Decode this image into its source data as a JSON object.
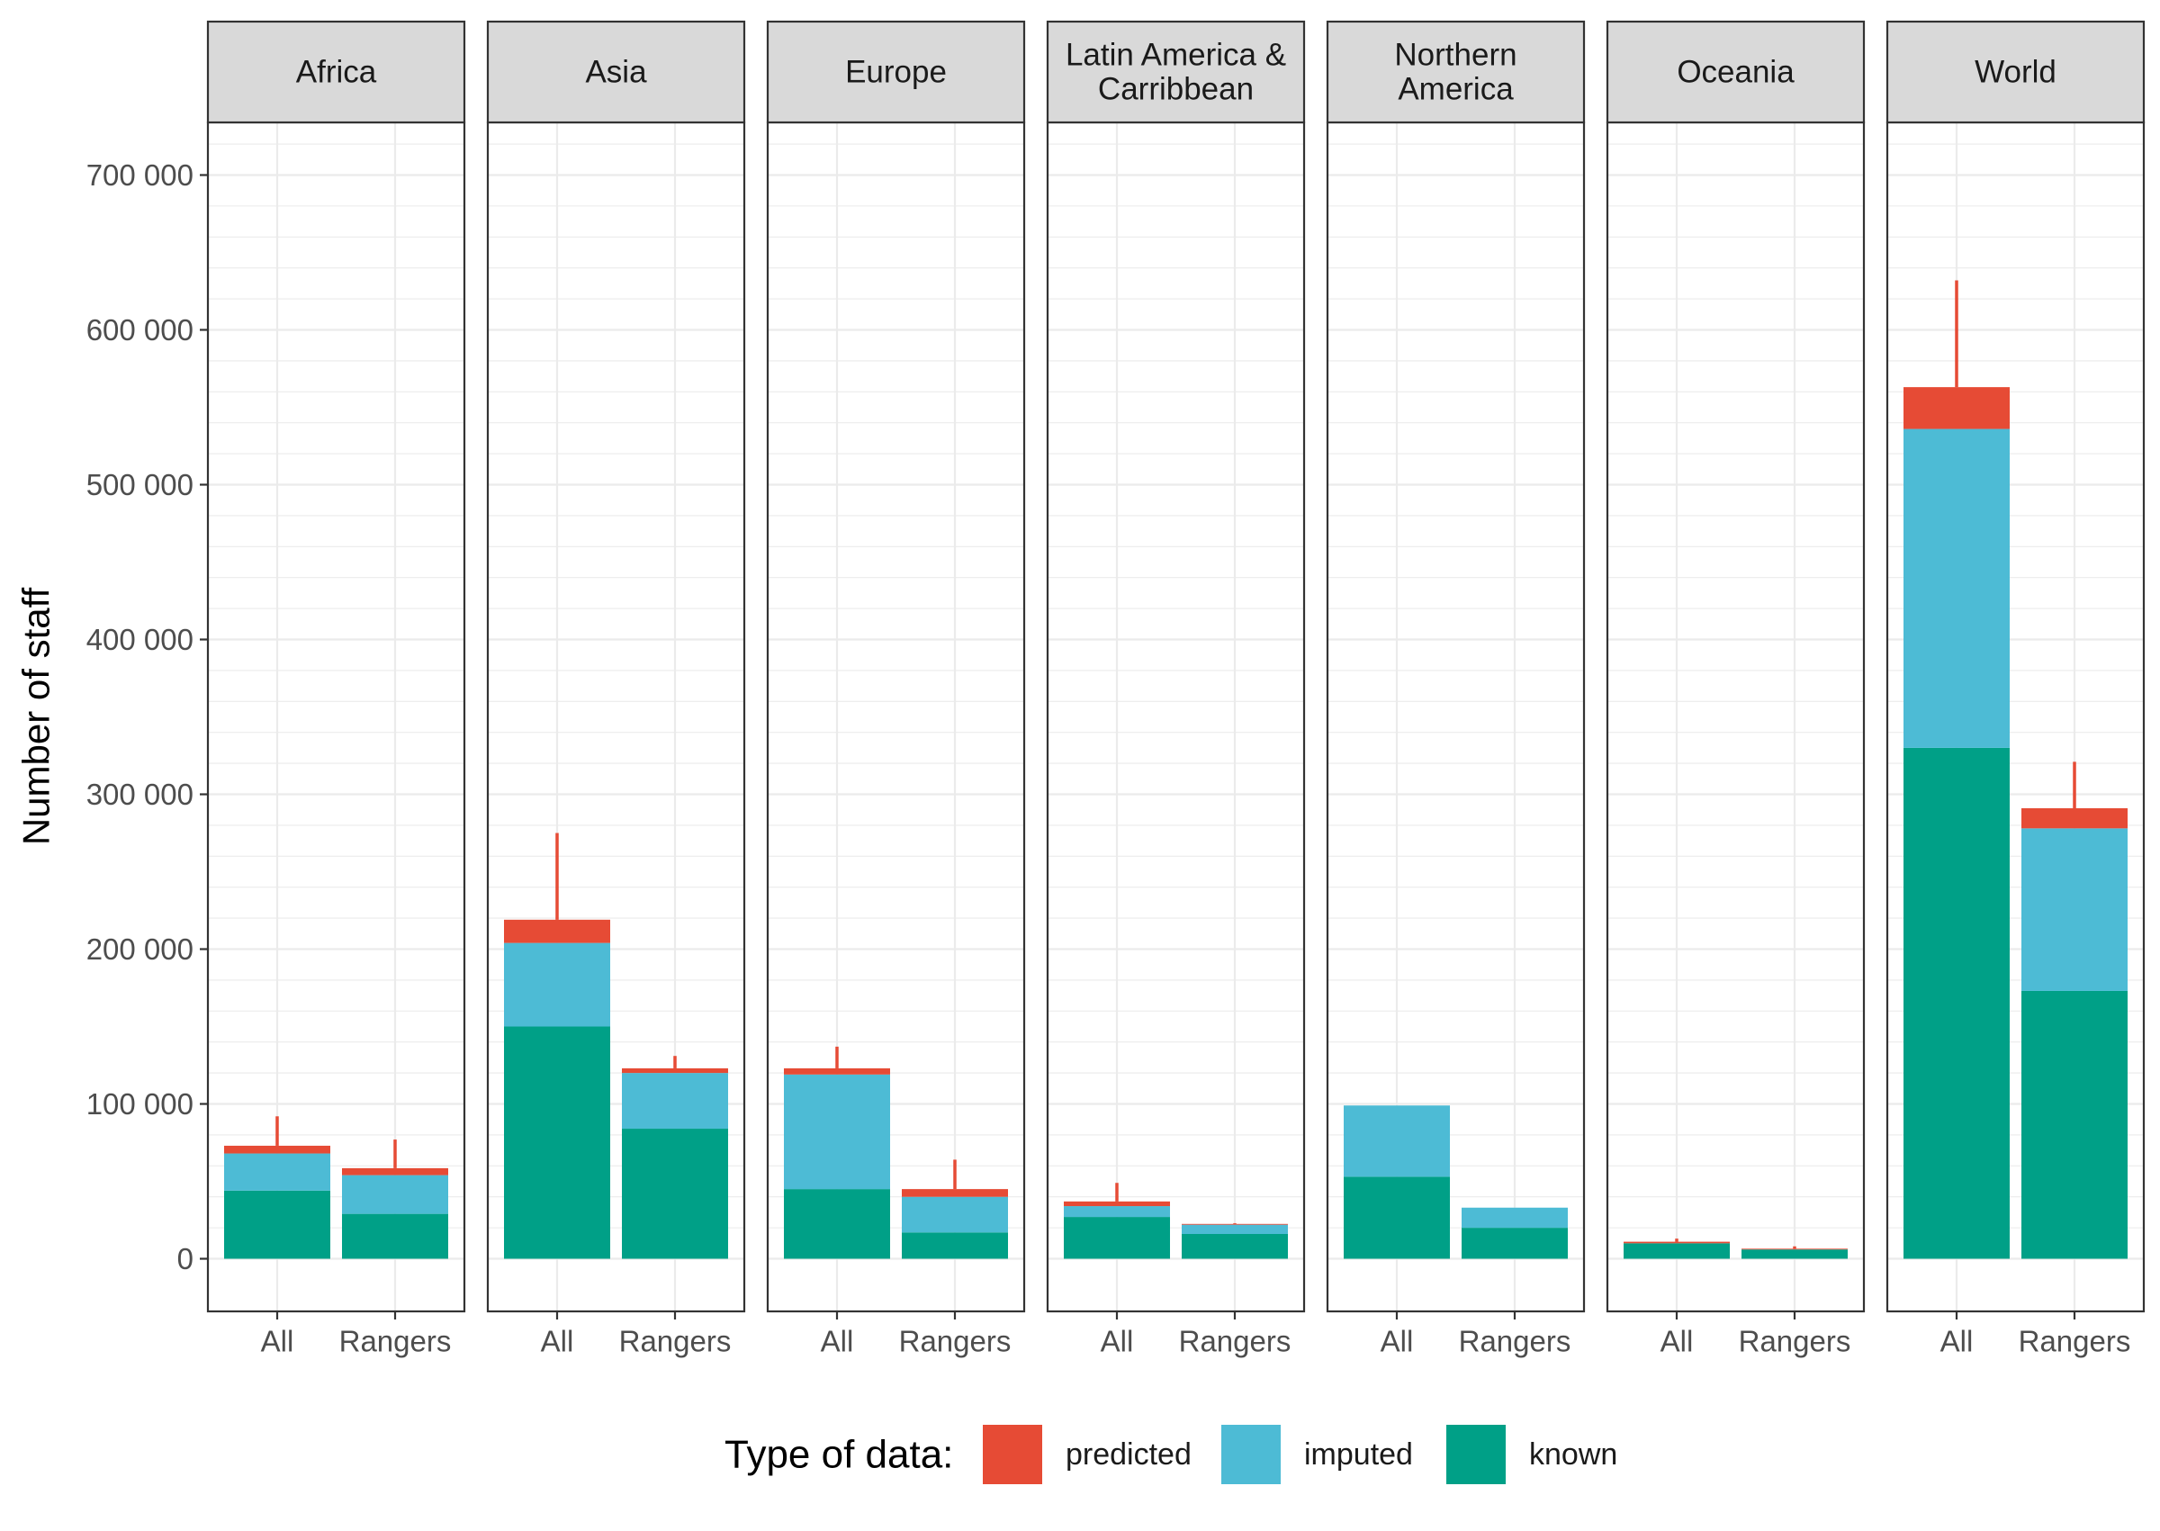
{
  "chart_data": {
    "type": "bar",
    "stacked": true,
    "facet_by": "region",
    "categories": [
      "All",
      "Rangers"
    ],
    "ylabel": "Number of staff",
    "xlabel": "",
    "ylim": [
      -34000,
      734000
    ],
    "yticks": [
      0,
      100000,
      200000,
      300000,
      400000,
      500000,
      600000,
      700000
    ],
    "ytick_labels": [
      "0",
      "100 000",
      "200 000",
      "300 000",
      "400 000",
      "500 000",
      "600 000",
      "700 000"
    ],
    "grid": true,
    "legend": {
      "title": "Type of data:",
      "position": "bottom",
      "items": [
        {
          "name": "predicted",
          "color": "#E64B35"
        },
        {
          "name": "imputed",
          "color": "#4DBBD5"
        },
        {
          "name": "known",
          "color": "#00A087"
        }
      ]
    },
    "series_order_bottom_to_top": [
      "known",
      "imputed",
      "predicted"
    ],
    "error_bar_color": "#E64B35",
    "panels": [
      {
        "label_lines": [
          "Africa"
        ],
        "bars": [
          {
            "category": "All",
            "known": 44000,
            "imputed": 24000,
            "predicted": 5000,
            "upper": 92000
          },
          {
            "category": "Rangers",
            "known": 29000,
            "imputed": 25000,
            "predicted": 4500,
            "upper": 77000
          }
        ]
      },
      {
        "label_lines": [
          "Asia"
        ],
        "bars": [
          {
            "category": "All",
            "known": 150000,
            "imputed": 54000,
            "predicted": 15000,
            "upper": 275000
          },
          {
            "category": "Rangers",
            "known": 84000,
            "imputed": 36000,
            "predicted": 3000,
            "upper": 131000
          }
        ]
      },
      {
        "label_lines": [
          "Europe"
        ],
        "bars": [
          {
            "category": "All",
            "known": 45000,
            "imputed": 74000,
            "predicted": 4000,
            "upper": 137000
          },
          {
            "category": "Rangers",
            "known": 17000,
            "imputed": 23000,
            "predicted": 5000,
            "upper": 64000
          }
        ]
      },
      {
        "label_lines": [
          "Latin America &",
          "Carribbean"
        ],
        "bars": [
          {
            "category": "All",
            "known": 27000,
            "imputed": 7000,
            "predicted": 3000,
            "upper": 49000
          },
          {
            "category": "Rangers",
            "known": 16000,
            "imputed": 6000,
            "predicted": 500,
            "upper": 23000
          }
        ]
      },
      {
        "label_lines": [
          "Northern",
          "America"
        ],
        "bars": [
          {
            "category": "All",
            "known": 53000,
            "imputed": 46000,
            "predicted": 0,
            "upper": 99000
          },
          {
            "category": "Rangers",
            "known": 20000,
            "imputed": 13000,
            "predicted": 0,
            "upper": 33000
          }
        ]
      },
      {
        "label_lines": [
          "Oceania"
        ],
        "bars": [
          {
            "category": "All",
            "known": 10000,
            "imputed": 0,
            "predicted": 1000,
            "upper": 13000
          },
          {
            "category": "Rangers",
            "known": 6000,
            "imputed": 0,
            "predicted": 500,
            "upper": 8000
          }
        ]
      },
      {
        "label_lines": [
          "World"
        ],
        "bars": [
          {
            "category": "All",
            "known": 330000,
            "imputed": 206000,
            "predicted": 27000,
            "upper": 632000
          },
          {
            "category": "Rangers",
            "known": 173000,
            "imputed": 105000,
            "predicted": 13000,
            "upper": 321000
          }
        ]
      }
    ]
  }
}
